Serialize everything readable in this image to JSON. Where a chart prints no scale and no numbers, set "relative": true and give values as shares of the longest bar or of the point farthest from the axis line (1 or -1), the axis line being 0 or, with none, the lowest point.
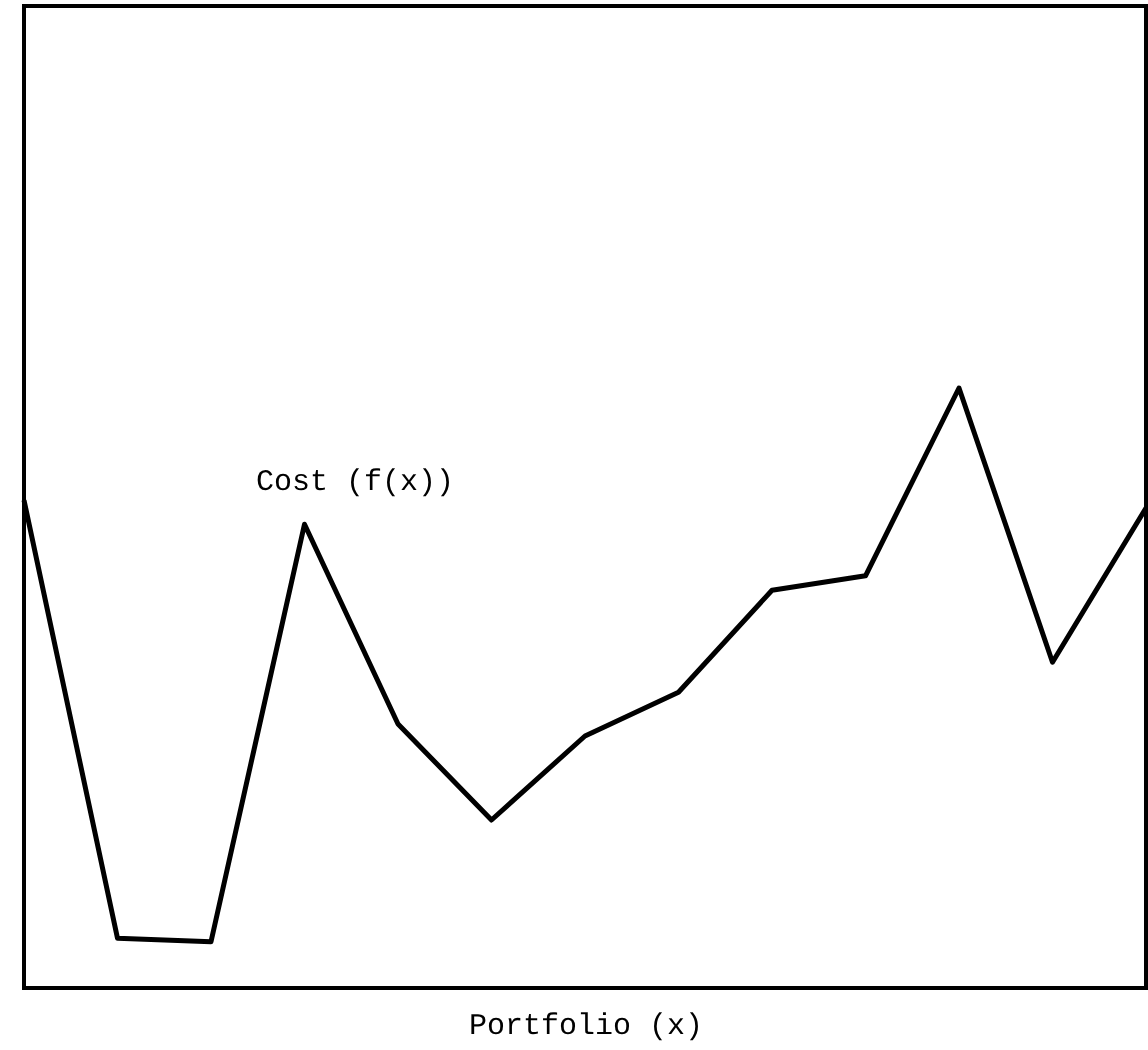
{
  "chart_data": {
    "type": "line",
    "relative": true,
    "xlabel": "Portfolio (x)",
    "categories": [
      null,
      null,
      null,
      null,
      null,
      null,
      null,
      null,
      null,
      null,
      null,
      null,
      null
    ],
    "series": [
      {
        "name": "Cost (f(x))",
        "color": "#000000",
        "values": [
          0.813,
          0.083,
          0.077,
          0.773,
          0.44,
          0.28,
          0.42,
          0.493,
          0.663,
          0.687,
          1,
          0.543,
          0.8
        ]
      }
    ],
    "marker": "none",
    "line_style": "solid"
  }
}
